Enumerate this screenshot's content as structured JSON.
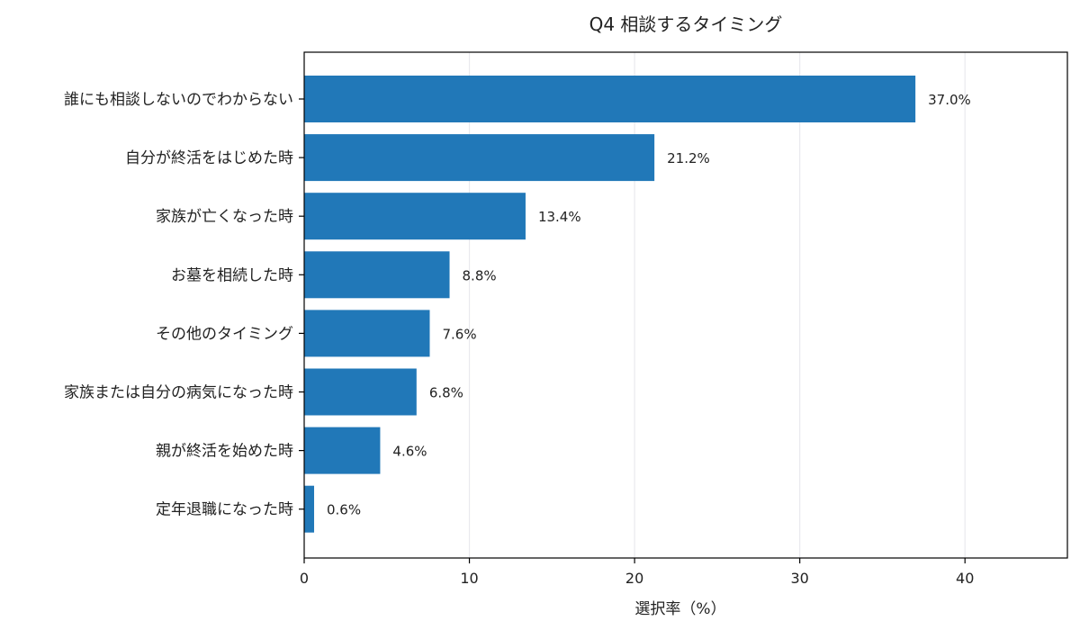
{
  "chart_data": {
    "type": "bar",
    "orientation": "horizontal",
    "title": "Q4 相談するタイミング",
    "xlabel": "選択率（%）",
    "ylabel": "",
    "categories": [
      "誰にも相談しないのでわからない",
      "自分が終活をはじめた時",
      "家族が亡くなった時",
      "お墓を相続した時",
      "その他のタイミング",
      "家族または自分の病気になった時",
      "親が終活を始めた時",
      "定年退職になった時"
    ],
    "values": [
      37.0,
      21.2,
      13.4,
      8.8,
      7.6,
      6.8,
      4.6,
      0.6
    ],
    "value_labels": [
      "37.0%",
      "21.2%",
      "13.4%",
      "8.8%",
      "7.6%",
      "6.8%",
      "4.6%",
      "0.6%"
    ],
    "xlim": [
      0,
      46.2
    ],
    "xticks": [
      0,
      10,
      20,
      30,
      40
    ],
    "xtick_labels": [
      "0",
      "10",
      "20",
      "30",
      "40"
    ],
    "grid": "vertical",
    "legend": "none",
    "bar_color": "#2178b8",
    "grid_color": "#e9e9ee"
  }
}
